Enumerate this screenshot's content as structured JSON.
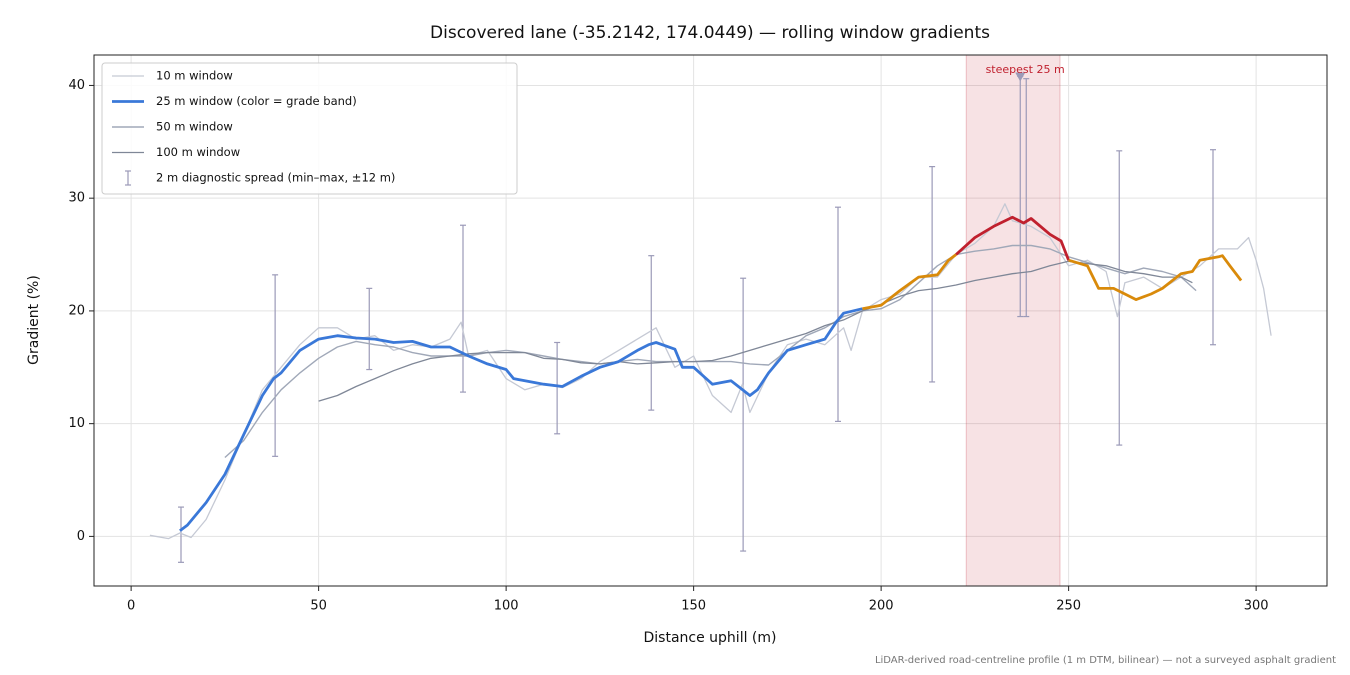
{
  "chart_data": {
    "type": "line",
    "title": "Discovered lane (-35.2142, 174.0449) — rolling window gradients",
    "xlabel": "Distance uphill (m)",
    "ylabel": "Gradient (%)",
    "footnote": "LiDAR-derived road-centreline profile (1 m DTM, bilinear) — not a surveyed asphalt gradient",
    "xlim": [
      -9.9,
      318.9
    ],
    "ylim": [
      -4.4,
      42.7
    ],
    "xticks": [
      0,
      50,
      100,
      150,
      200,
      250,
      300
    ],
    "yticks": [
      0,
      10,
      20,
      30,
      40
    ],
    "grid": true,
    "legend": "upper left",
    "series": [
      {
        "name": "10 m window",
        "color": "#c5c9d4",
        "x": [
          5,
          10,
          13,
          16,
          20,
          25,
          30,
          35,
          40,
          45,
          50,
          55,
          60,
          65,
          70,
          75,
          80,
          85,
          88,
          90,
          95,
          100,
          105,
          110,
          115,
          120,
          125,
          130,
          135,
          140,
          145,
          150,
          155,
          160,
          163,
          165,
          170,
          175,
          180,
          185,
          190,
          192,
          195,
          200,
          205,
          210,
          215,
          220,
          225,
          230,
          233,
          235,
          240,
          245,
          250,
          255,
          260,
          263,
          265,
          270,
          275,
          280,
          285,
          290,
          295,
          298,
          300,
          302,
          304
        ],
        "values": [
          0.1,
          -0.2,
          0.3,
          -0.1,
          1.5,
          5,
          9,
          13,
          15,
          17,
          18.5,
          18.5,
          17.5,
          17.8,
          16.5,
          17,
          16.8,
          17.5,
          19,
          16,
          16.5,
          14,
          13,
          13.5,
          13.2,
          14,
          15.5,
          16.5,
          17.5,
          18.5,
          15,
          16,
          12.5,
          11,
          13.5,
          11,
          14.5,
          17,
          17.5,
          17,
          18.5,
          16.5,
          20,
          21,
          21.5,
          23,
          23,
          25,
          26,
          27.5,
          29.5,
          28,
          27.5,
          26.5,
          24,
          24.5,
          23.5,
          19.5,
          22.5,
          23,
          22,
          23,
          24,
          25.5,
          25.5,
          26.5,
          24.5,
          22,
          17.8
        ]
      },
      {
        "name": "25 m window (color = grade band)",
        "color": "#3a78d8",
        "band_thresholds": [
          20,
          25
        ],
        "band_colors": [
          "#3a78d8",
          "#d98a0a",
          "#c0202e"
        ],
        "x": [
          13,
          15,
          20,
          25,
          30,
          35,
          38,
          40,
          45,
          50,
          55,
          60,
          65,
          70,
          75,
          80,
          85,
          90,
          95,
          100,
          102,
          105,
          110,
          115,
          120,
          125,
          130,
          135,
          138,
          140,
          145,
          147,
          150,
          155,
          160,
          165,
          167,
          170,
          175,
          180,
          185,
          188,
          190,
          195,
          200,
          205,
          210,
          215,
          218,
          220,
          225,
          230,
          235,
          238,
          240,
          245,
          248,
          250,
          255,
          258,
          262,
          265,
          268,
          272,
          275,
          280,
          283,
          285,
          290,
          291,
          293,
          296
        ],
        "values": [
          0.5,
          1,
          3,
          5.5,
          9,
          12.5,
          14,
          14.5,
          16.5,
          17.5,
          17.8,
          17.6,
          17.5,
          17.2,
          17.3,
          16.8,
          16.8,
          16,
          15.3,
          14.8,
          14,
          13.8,
          13.5,
          13.3,
          14.2,
          15,
          15.5,
          16.5,
          17,
          17.2,
          16.6,
          15,
          15,
          13.5,
          13.8,
          12.5,
          13,
          14.5,
          16.5,
          17,
          17.5,
          19,
          19.8,
          20.2,
          20.5,
          21.8,
          23,
          23.2,
          24.5,
          25,
          26.5,
          27.5,
          28.3,
          27.8,
          28.2,
          26.8,
          26.2,
          24.5,
          24,
          22,
          22,
          21.5,
          21,
          21.5,
          22,
          23.3,
          23.5,
          24.5,
          24.8,
          24.9,
          24,
          22.7
        ]
      },
      {
        "name": "50 m window",
        "color": "#a0a8b8",
        "x": [
          25,
          30,
          35,
          40,
          45,
          50,
          55,
          60,
          65,
          70,
          75,
          80,
          85,
          90,
          95,
          100,
          105,
          110,
          115,
          120,
          125,
          130,
          135,
          140,
          145,
          150,
          155,
          160,
          165,
          170,
          175,
          180,
          185,
          190,
          195,
          200,
          205,
          210,
          215,
          220,
          225,
          230,
          235,
          240,
          245,
          250,
          255,
          260,
          265,
          270,
          275,
          280,
          284
        ],
        "values": [
          7,
          8.5,
          11,
          13,
          14.5,
          15.8,
          16.8,
          17.3,
          17,
          16.8,
          16.3,
          16,
          16,
          16,
          16.3,
          16.5,
          16.3,
          16,
          15.7,
          15.5,
          15.3,
          15.5,
          15.7,
          15.5,
          15.5,
          15.5,
          15.5,
          15.5,
          15.3,
          15.2,
          16.5,
          17.8,
          18.5,
          19.5,
          20,
          20.2,
          21,
          22.5,
          24,
          25,
          25.3,
          25.5,
          25.8,
          25.8,
          25.5,
          24.8,
          24.3,
          23.8,
          23.3,
          23.8,
          23.5,
          23,
          21.8
        ]
      },
      {
        "name": "100 m window",
        "color": "#7f8797",
        "x": [
          50,
          55,
          60,
          65,
          70,
          75,
          80,
          85,
          90,
          95,
          100,
          105,
          110,
          115,
          120,
          125,
          130,
          135,
          140,
          145,
          150,
          155,
          160,
          165,
          170,
          175,
          180,
          185,
          190,
          195,
          200,
          205,
          210,
          215,
          220,
          225,
          230,
          235,
          240,
          245,
          250,
          255,
          260,
          265,
          270,
          275,
          280,
          283
        ],
        "values": [
          12,
          12.5,
          13.3,
          14,
          14.7,
          15.3,
          15.8,
          16,
          16.2,
          16.3,
          16.3,
          16.3,
          15.8,
          15.7,
          15.4,
          15.3,
          15.5,
          15.3,
          15.4,
          15.5,
          15.5,
          15.6,
          16,
          16.5,
          17,
          17.5,
          18,
          18.7,
          19.2,
          20,
          20.6,
          21.3,
          21.8,
          22,
          22.3,
          22.7,
          23,
          23.3,
          23.5,
          24,
          24.4,
          24.2,
          24,
          23.5,
          23.3,
          23,
          23,
          22.5
        ]
      }
    ],
    "errorbars": {
      "name": "2 m diagnostic spread (min–max, ±12 m)",
      "color": "#9b9ab8",
      "x": [
        13.3,
        38.4,
        63.5,
        88.5,
        113.6,
        138.7,
        163.2,
        188.5,
        213.6,
        237.1,
        238.7,
        263.5,
        288.5
      ],
      "low": [
        -2.3,
        7.1,
        14.8,
        12.8,
        9.1,
        11.2,
        -1.3,
        10.2,
        13.7,
        19.5,
        19.5,
        8.1,
        17.0
      ],
      "high": [
        2.6,
        23.2,
        22.0,
        27.6,
        17.2,
        24.9,
        22.9,
        29.2,
        32.8,
        40.8,
        40.6,
        34.2,
        34.3
      ]
    },
    "highlight": {
      "label": "steepest 25 m",
      "color": "#c0202e",
      "xlim": [
        222.7,
        247.7
      ],
      "marker_x": 237.1,
      "marker_y": 40.7
    }
  }
}
